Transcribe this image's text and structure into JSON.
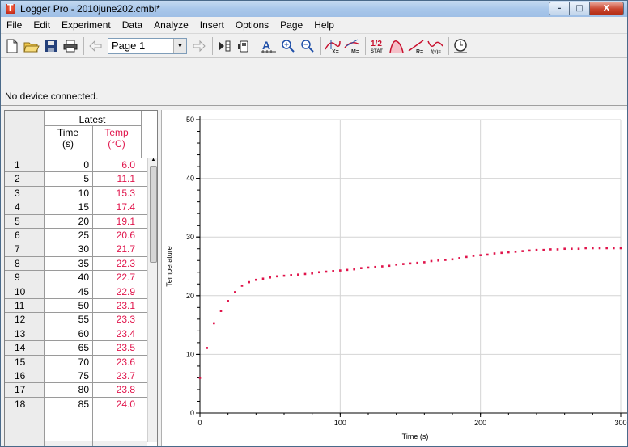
{
  "window": {
    "title": "Logger Pro - 2010june202.cmbl*",
    "controls": {
      "minimize": "–",
      "maximize": "□",
      "close": "X"
    }
  },
  "menu": {
    "items": [
      "File",
      "Edit",
      "Experiment",
      "Data",
      "Analyze",
      "Insert",
      "Options",
      "Page",
      "Help"
    ]
  },
  "toolbar": {
    "page_select": "Page 1",
    "icons": [
      "new-file-icon",
      "open-folder-icon",
      "save-icon",
      "print-icon",
      "previous-page-icon",
      "next-page-icon",
      "collect-icon",
      "device-icon",
      "autoscale-icon",
      "zoom-in-icon",
      "zoom-out-icon",
      "examine-icon",
      "tangent-icon",
      "statistics-icon",
      "integral-icon",
      "linear-fit-icon",
      "curve-fit-icon",
      "stopwatch-icon"
    ]
  },
  "status": {
    "text": "No device connected."
  },
  "table": {
    "group_header": "Latest",
    "columns": [
      {
        "name": "Time",
        "unit": "(s)"
      },
      {
        "name": "Temp",
        "unit": "(°C)"
      }
    ],
    "rows": [
      {
        "n": "1",
        "time": "0",
        "temp": "6.0"
      },
      {
        "n": "2",
        "time": "5",
        "temp": "11.1"
      },
      {
        "n": "3",
        "time": "10",
        "temp": "15.3"
      },
      {
        "n": "4",
        "time": "15",
        "temp": "17.4"
      },
      {
        "n": "5",
        "time": "20",
        "temp": "19.1"
      },
      {
        "n": "6",
        "time": "25",
        "temp": "20.6"
      },
      {
        "n": "7",
        "time": "30",
        "temp": "21.7"
      },
      {
        "n": "8",
        "time": "35",
        "temp": "22.3"
      },
      {
        "n": "9",
        "time": "40",
        "temp": "22.7"
      },
      {
        "n": "10",
        "time": "45",
        "temp": "22.9"
      },
      {
        "n": "11",
        "time": "50",
        "temp": "23.1"
      },
      {
        "n": "12",
        "time": "55",
        "temp": "23.3"
      },
      {
        "n": "13",
        "time": "60",
        "temp": "23.4"
      },
      {
        "n": "14",
        "time": "65",
        "temp": "23.5"
      },
      {
        "n": "15",
        "time": "70",
        "temp": "23.6"
      },
      {
        "n": "16",
        "time": "75",
        "temp": "23.7"
      },
      {
        "n": "17",
        "time": "80",
        "temp": "23.8"
      },
      {
        "n": "18",
        "time": "85",
        "temp": "24.0"
      }
    ]
  },
  "chart_data": {
    "type": "scatter",
    "xlabel": "Time (s)",
    "ylabel": "Temperature",
    "xlim": [
      0,
      300
    ],
    "ylim": [
      0,
      50
    ],
    "xticks": [
      0,
      100,
      200,
      300
    ],
    "yticks": [
      0,
      10,
      20,
      30,
      40,
      50
    ],
    "grid": true,
    "color": "#e0144b",
    "series": [
      {
        "x": [
          0,
          5,
          10,
          15,
          20,
          25,
          30,
          35,
          40,
          45,
          50,
          55,
          60,
          65,
          70,
          75,
          80,
          85,
          90,
          95,
          100,
          105,
          110,
          115,
          120,
          125,
          130,
          135,
          140,
          145,
          150,
          155,
          160,
          165,
          170,
          175,
          180,
          185,
          190,
          195,
          200,
          205,
          210,
          215,
          220,
          225,
          230,
          235,
          240,
          245,
          250,
          255,
          260,
          265,
          270,
          275,
          280,
          285,
          290,
          295,
          300
        ],
        "y": [
          6.0,
          11.1,
          15.3,
          17.4,
          19.1,
          20.6,
          21.7,
          22.3,
          22.7,
          22.9,
          23.1,
          23.3,
          23.4,
          23.5,
          23.6,
          23.7,
          23.8,
          24.0,
          24.1,
          24.2,
          24.3,
          24.4,
          24.5,
          24.7,
          24.8,
          24.9,
          25.0,
          25.1,
          25.3,
          25.4,
          25.5,
          25.6,
          25.7,
          25.9,
          26.0,
          26.1,
          26.2,
          26.4,
          26.6,
          26.8,
          26.9,
          27.0,
          27.2,
          27.3,
          27.4,
          27.5,
          27.6,
          27.7,
          27.8,
          27.8,
          27.9,
          27.9,
          28.0,
          28.0,
          28.0,
          28.1,
          28.1,
          28.1,
          28.1,
          28.1,
          28.1
        ]
      }
    ]
  }
}
